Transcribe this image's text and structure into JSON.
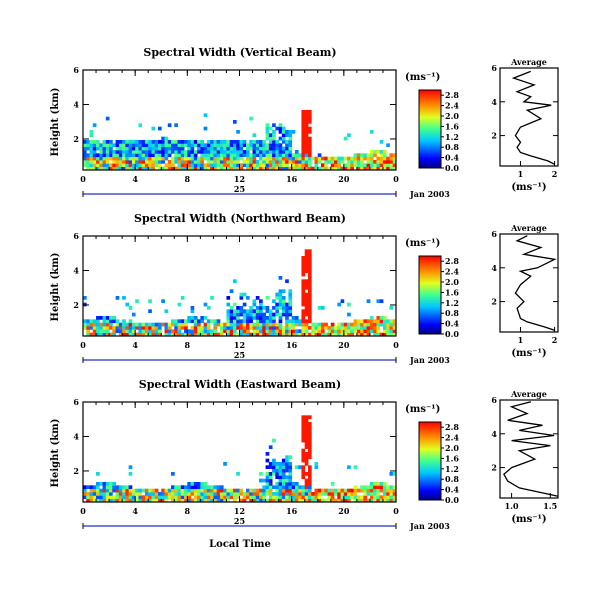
{
  "figure": {
    "xlabel": "Local Time",
    "date_label": "Jan 2003",
    "day_label": "25",
    "ylabel": "Height (km)",
    "colorbar_unit": "(ms⁻¹)",
    "profile_title": "Average",
    "profile_unit": "(ms⁻¹)"
  },
  "chart_data": [
    {
      "type": "heatmap",
      "title": "Spectral Width (Vertical Beam)",
      "xlabel": "Local Time",
      "ylabel": "Height (km)",
      "x_ticks": [
        "0",
        "4",
        "8",
        "12",
        "16",
        "20",
        "0"
      ],
      "y_ticks": [
        "2",
        "4",
        "6"
      ],
      "xlim": [
        0,
        24
      ],
      "ylim": [
        0.2,
        6.0
      ],
      "colorbar": {
        "ticks": [
          "0.0",
          "0.4",
          "0.8",
          "1.2",
          "1.6",
          "2.0",
          "2.4",
          "2.8"
        ],
        "range": [
          0.0,
          3.0
        ],
        "unit": "(ms⁻¹)"
      },
      "profile": {
        "title": "Average",
        "x_ticks": [
          "1",
          "2"
        ],
        "y_ticks": [
          "2",
          "4",
          "6"
        ],
        "xlim": [
          0.4,
          2.1
        ],
        "heights": [
          0.3,
          0.5,
          0.8,
          1.0,
          1.3,
          1.6,
          2.0,
          2.5,
          3.0,
          3.5,
          3.8,
          4.0,
          4.3,
          4.6,
          5.0,
          5.4,
          5.8
        ],
        "values": [
          2.0,
          1.8,
          1.3,
          1.0,
          0.9,
          1.0,
          0.85,
          1.0,
          1.6,
          1.2,
          1.9,
          1.1,
          1.3,
          0.9,
          1.4,
          0.8,
          1.3
        ]
      }
    },
    {
      "type": "heatmap",
      "title": "Spectral Width (Northward Beam)",
      "xlabel": "Local Time",
      "ylabel": "Height (km)",
      "x_ticks": [
        "0",
        "4",
        "8",
        "12",
        "16",
        "20",
        "0"
      ],
      "y_ticks": [
        "2",
        "4",
        "6"
      ],
      "xlim": [
        0,
        24
      ],
      "ylim": [
        0.2,
        6.0
      ],
      "colorbar": {
        "ticks": [
          "0.0",
          "0.4",
          "0.8",
          "1.2",
          "1.6",
          "2.0",
          "2.4",
          "2.8"
        ],
        "range": [
          0.0,
          3.0
        ],
        "unit": "(ms⁻¹)"
      },
      "profile": {
        "title": "Average",
        "x_ticks": [
          "1",
          "2"
        ],
        "y_ticks": [
          "2",
          "4",
          "6"
        ],
        "xlim": [
          0.4,
          2.1
        ],
        "heights": [
          0.3,
          0.5,
          0.8,
          1.0,
          1.3,
          1.6,
          2.0,
          2.5,
          3.0,
          3.5,
          3.8,
          4.0,
          4.5,
          4.8,
          5.2,
          5.6,
          5.9
        ],
        "values": [
          2.0,
          1.7,
          1.2,
          1.0,
          0.95,
          0.9,
          1.1,
          0.85,
          1.0,
          1.3,
          1.0,
          1.5,
          2.0,
          1.1,
          1.6,
          0.9,
          1.2
        ]
      }
    },
    {
      "type": "heatmap",
      "title": "Spectral Width (Eastward Beam)",
      "xlabel": "Local Time",
      "ylabel": "Height (km)",
      "x_ticks": [
        "0",
        "4",
        "8",
        "12",
        "16",
        "20",
        "0"
      ],
      "y_ticks": [
        "2",
        "4",
        "6"
      ],
      "xlim": [
        0,
        24
      ],
      "ylim": [
        0.2,
        6.0
      ],
      "colorbar": {
        "ticks": [
          "0.0",
          "0.4",
          "0.8",
          "1.2",
          "1.6",
          "2.0",
          "2.4",
          "2.8"
        ],
        "range": [
          0.0,
          3.0
        ],
        "unit": "(ms⁻¹)"
      },
      "profile": {
        "title": "Average",
        "x_ticks": [
          "1.0",
          "1.5"
        ],
        "y_ticks": [
          "2",
          "4",
          "6"
        ],
        "xlim": [
          0.85,
          1.6
        ],
        "heights": [
          0.3,
          0.5,
          0.8,
          1.2,
          1.6,
          2.0,
          2.5,
          3.0,
          3.3,
          3.6,
          3.9,
          4.2,
          4.5,
          4.8,
          5.2,
          5.6,
          5.9
        ],
        "values": [
          1.6,
          1.4,
          1.1,
          0.95,
          0.9,
          1.0,
          1.3,
          1.1,
          1.5,
          1.0,
          1.55,
          1.1,
          1.4,
          0.95,
          1.2,
          1.0,
          1.25
        ]
      }
    }
  ]
}
